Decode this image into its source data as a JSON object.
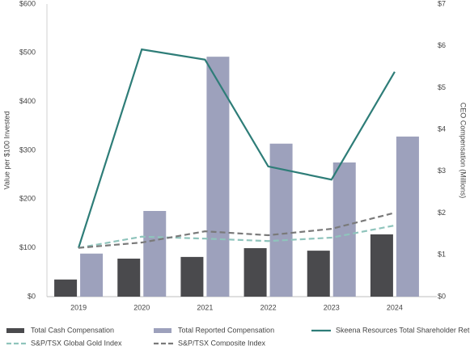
{
  "chart_data": {
    "type": "bar",
    "categories": [
      "2019",
      "2020",
      "2021",
      "2022",
      "2023",
      "2024"
    ],
    "ylabel": "Value per $100 Invested",
    "y2label": "CEO Compensation (Millions)",
    "ylim": [
      0,
      600
    ],
    "yticks": [
      {
        "value": 0,
        "label": "$0"
      },
      {
        "value": 100,
        "label": "$100"
      },
      {
        "value": 200,
        "label": "$200"
      },
      {
        "value": 300,
        "label": "$300"
      },
      {
        "value": 400,
        "label": "$400"
      },
      {
        "value": 500,
        "label": "$500"
      },
      {
        "value": 600,
        "label": "$600"
      }
    ],
    "y2lim": [
      0,
      7
    ],
    "y2ticks": [
      {
        "value": 0,
        "label": "$0"
      },
      {
        "value": 1,
        "label": "$1"
      },
      {
        "value": 2,
        "label": "$2"
      },
      {
        "value": 3,
        "label": "$3"
      },
      {
        "value": 4,
        "label": "$4"
      },
      {
        "value": 5,
        "label": "$5"
      },
      {
        "value": 6,
        "label": "$6"
      },
      {
        "value": 7,
        "label": "$7"
      }
    ],
    "grid": false,
    "legend": "bottom",
    "series": [
      {
        "name": "Total Cash Compensation",
        "type": "bar",
        "axis": "y2",
        "color": "#4a4a4d",
        "values": [
          0.41,
          0.91,
          0.95,
          1.16,
          1.1,
          1.49
        ]
      },
      {
        "name": "Total Reported Compensation",
        "type": "bar",
        "axis": "y2",
        "color": "#9da1bc",
        "values": [
          1.03,
          2.05,
          5.74,
          3.66,
          3.21,
          3.83
        ]
      },
      {
        "name": "Skeena Resources Total Shareholder Return",
        "type": "line",
        "color": "#2e7d78",
        "values": [
          100,
          507,
          486,
          267,
          240,
          461
        ]
      },
      {
        "name": "S&P/TSX Global Gold Index",
        "type": "line",
        "dash": true,
        "color": "#8fc4bc",
        "values": [
          100,
          123,
          119,
          114,
          121,
          146
        ]
      },
      {
        "name": "S&P/TSX Composite Index",
        "type": "line",
        "dash": true,
        "color": "#7a7a7a",
        "values": [
          100,
          111,
          134,
          126,
          139,
          172
        ]
      }
    ]
  }
}
